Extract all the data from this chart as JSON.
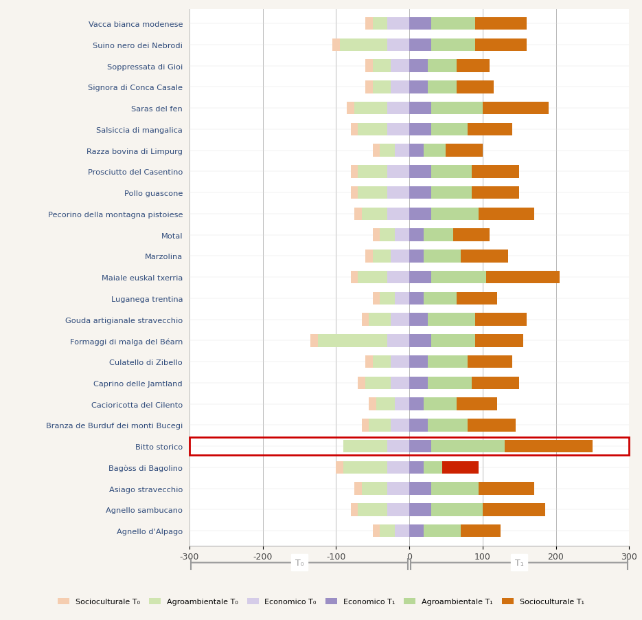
{
  "categories": [
    "Vacca bianca modenese",
    "Suino nero dei Nebrodi",
    "Soppressata di Gioi",
    "Signora di Conca Casale",
    "Saras del fen",
    "Salsiccia di mangalica",
    "Razza bovina di Limpurg",
    "Prosciutto del Casentino",
    "Pollo guascone",
    "Pecorino della montagna pistoiese",
    "Motal",
    "Marzolina",
    "Maiale euskal txerria",
    "Luganega trentina",
    "Gouda artigianale stravecchio",
    "Formaggi di malga del Béarn",
    "Culatello di Zibello",
    "Caprino delle Jamtland",
    "Cacioricotta del Cilento",
    "Branza de Burduf dei monti Bucegi",
    "Bitto storico",
    "Bagòss di Bagolino",
    "Asiago stravecchio",
    "Agnello sambucano",
    "Agnello d'Alpago"
  ],
  "label_color": "#2e4a7a",
  "highlight": "Bitto storico",
  "highlight_color": "#cc0000",
  "note_bagoss": true,
  "socioculturale_t0": [
    10,
    10,
    10,
    10,
    10,
    10,
    10,
    10,
    10,
    10,
    10,
    10,
    10,
    10,
    10,
    10,
    10,
    10,
    10,
    10,
    0,
    10,
    10,
    10,
    10
  ],
  "agroambientale_t0": [
    20,
    65,
    25,
    25,
    45,
    40,
    20,
    40,
    40,
    35,
    20,
    25,
    40,
    20,
    30,
    95,
    25,
    35,
    25,
    30,
    60,
    60,
    35,
    40,
    20
  ],
  "economico_t0": [
    30,
    30,
    25,
    25,
    30,
    30,
    20,
    30,
    30,
    30,
    20,
    25,
    30,
    20,
    25,
    30,
    25,
    25,
    20,
    25,
    30,
    30,
    30,
    30,
    20
  ],
  "economico_t1": [
    30,
    30,
    25,
    25,
    30,
    30,
    20,
    30,
    30,
    30,
    20,
    20,
    30,
    20,
    25,
    30,
    25,
    25,
    20,
    25,
    30,
    20,
    30,
    30,
    20
  ],
  "agroambientale_t1": [
    60,
    60,
    40,
    40,
    70,
    50,
    30,
    55,
    55,
    65,
    40,
    50,
    75,
    45,
    65,
    60,
    55,
    60,
    45,
    55,
    100,
    25,
    65,
    70,
    50
  ],
  "socioculturale_t1": [
    70,
    70,
    45,
    50,
    90,
    60,
    50,
    65,
    65,
    75,
    50,
    65,
    100,
    55,
    70,
    65,
    60,
    65,
    55,
    65,
    120,
    55,
    75,
    85,
    55
  ],
  "bagoss_red_bar": 50,
  "colors": {
    "socioculturale_t0": "#f5cdb0",
    "agroambientale_t0": "#d0e5b0",
    "economico_t0": "#d5cce8",
    "economico_t1": "#9b8ec4",
    "agroambientale_t1": "#b8d898",
    "socioculturale_t1": "#d07010"
  },
  "xlim": [
    -300,
    300
  ],
  "xticks": [
    -300,
    -200,
    -100,
    0,
    100,
    200,
    300
  ],
  "background_color": "#f7f4ef",
  "plot_background": "#ffffff"
}
